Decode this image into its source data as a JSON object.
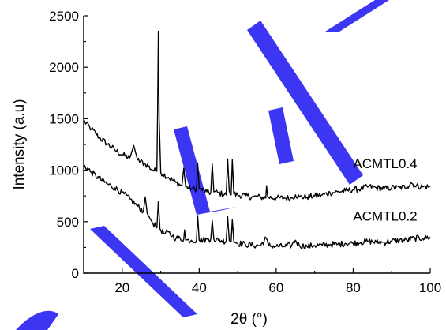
{
  "chart_data": {
    "type": "line",
    "title": "",
    "xlabel": "2θ (°)",
    "ylabel": "Intensity (a.u)",
    "xlim": [
      10,
      100
    ],
    "ylim": [
      0,
      2500
    ],
    "xticks": [
      20,
      40,
      60,
      80,
      100
    ],
    "yticks": [
      0,
      500,
      1000,
      1500,
      2000,
      2500
    ],
    "grid": false,
    "colors": {
      "line": "#000000",
      "watermark": "#2b24f0"
    },
    "series": [
      {
        "name": "ACMTL0.4",
        "label_x": 80,
        "label_y": 1020,
        "points": [
          [
            10,
            1480
          ],
          [
            12,
            1400
          ],
          [
            14,
            1320
          ],
          [
            16,
            1260
          ],
          [
            18,
            1200
          ],
          [
            20,
            1150
          ],
          [
            22,
            1120
          ],
          [
            23,
            1240
          ],
          [
            24,
            1100
          ],
          [
            26,
            1060
          ],
          [
            28,
            1000
          ],
          [
            29,
            990
          ],
          [
            29.2,
            1600
          ],
          [
            29.4,
            2350
          ],
          [
            29.6,
            1500
          ],
          [
            30,
            980
          ],
          [
            32,
            930
          ],
          [
            34,
            880
          ],
          [
            35.5,
            850
          ],
          [
            36,
            1020
          ],
          [
            36.5,
            840
          ],
          [
            38,
            820
          ],
          [
            39.3,
            820
          ],
          [
            39.6,
            1070
          ],
          [
            40,
            820
          ],
          [
            42,
            790
          ],
          [
            43,
            780
          ],
          [
            43.4,
            1060
          ],
          [
            43.8,
            790
          ],
          [
            45,
            780
          ],
          [
            47,
            760
          ],
          [
            47.4,
            1110
          ],
          [
            47.8,
            800
          ],
          [
            48.3,
            760
          ],
          [
            48.6,
            1100
          ],
          [
            49,
            770
          ],
          [
            50,
            760
          ],
          [
            52,
            750
          ],
          [
            54,
            740
          ],
          [
            56,
            740
          ],
          [
            57.3,
            730
          ],
          [
            57.5,
            850
          ],
          [
            57.8,
            740
          ],
          [
            60,
            730
          ],
          [
            62,
            730
          ],
          [
            64,
            730
          ],
          [
            65,
            760
          ],
          [
            66,
            740
          ],
          [
            68,
            740
          ],
          [
            70,
            750
          ],
          [
            72,
            760
          ],
          [
            74,
            780
          ],
          [
            76,
            790
          ],
          [
            78,
            800
          ],
          [
            80,
            810
          ],
          [
            82,
            820
          ],
          [
            84,
            840
          ],
          [
            86,
            830
          ],
          [
            88,
            820
          ],
          [
            90,
            830
          ],
          [
            92,
            830
          ],
          [
            94,
            840
          ],
          [
            95,
            880
          ],
          [
            96,
            850
          ],
          [
            98,
            840
          ],
          [
            100,
            840
          ]
        ]
      },
      {
        "name": "ACMTL0.2",
        "label_x": 80,
        "label_y": 510,
        "points": [
          [
            10,
            1050
          ],
          [
            12,
            980
          ],
          [
            14,
            920
          ],
          [
            16,
            870
          ],
          [
            18,
            830
          ],
          [
            20,
            780
          ],
          [
            22,
            720
          ],
          [
            24,
            650
          ],
          [
            25.5,
            600
          ],
          [
            26,
            740
          ],
          [
            26.5,
            580
          ],
          [
            28,
            480
          ],
          [
            29,
            440
          ],
          [
            29.4,
            700
          ],
          [
            29.8,
            430
          ],
          [
            31,
            380
          ],
          [
            32,
            400
          ],
          [
            33,
            360
          ],
          [
            34,
            340
          ],
          [
            36,
            330
          ],
          [
            36.2,
            420
          ],
          [
            36.5,
            320
          ],
          [
            38,
            320
          ],
          [
            39.3,
            320
          ],
          [
            39.6,
            560
          ],
          [
            40,
            320
          ],
          [
            42,
            330
          ],
          [
            43,
            330
          ],
          [
            43.4,
            510
          ],
          [
            43.8,
            330
          ],
          [
            45,
            320
          ],
          [
            47,
            310
          ],
          [
            47.4,
            550
          ],
          [
            47.8,
            320
          ],
          [
            48.3,
            310
          ],
          [
            48.6,
            520
          ],
          [
            49,
            310
          ],
          [
            50,
            290
          ],
          [
            52,
            280
          ],
          [
            54,
            270
          ],
          [
            56,
            270
          ],
          [
            57.4,
            340
          ],
          [
            58,
            270
          ],
          [
            60,
            260
          ],
          [
            62,
            260
          ],
          [
            64,
            270
          ],
          [
            65,
            320
          ],
          [
            66,
            270
          ],
          [
            68,
            260
          ],
          [
            70,
            270
          ],
          [
            72,
            270
          ],
          [
            74,
            280
          ],
          [
            76,
            280
          ],
          [
            78,
            290
          ],
          [
            80,
            290
          ],
          [
            82,
            300
          ],
          [
            84,
            310
          ],
          [
            86,
            300
          ],
          [
            88,
            300
          ],
          [
            90,
            310
          ],
          [
            92,
            320
          ],
          [
            94,
            320
          ],
          [
            96,
            340
          ],
          [
            98,
            340
          ],
          [
            100,
            350
          ]
        ]
      }
    ]
  }
}
